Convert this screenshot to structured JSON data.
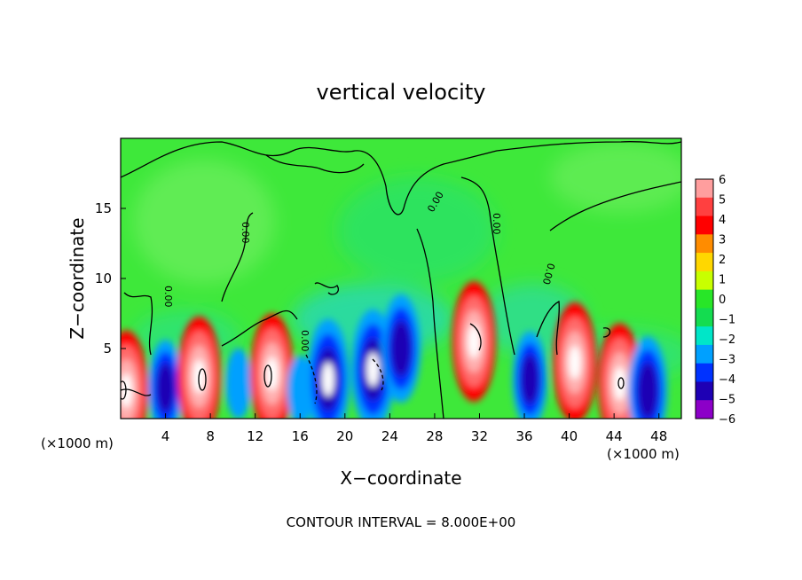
{
  "chart_data": {
    "type": "heatmap",
    "title": "vertical velocity",
    "xlabel": "X−coordinate",
    "ylabel": "Z−coordinate",
    "x_unit_left": "(×1000 m)",
    "x_unit_right": "(×1000 m)",
    "xlim": [
      0,
      50
    ],
    "ylim": [
      0,
      20
    ],
    "x_ticks": [
      4,
      8,
      12,
      16,
      20,
      24,
      28,
      32,
      36,
      40,
      44,
      48
    ],
    "x_tick_labels": [
      "4",
      "8",
      "12",
      "16",
      "20",
      "24",
      "28",
      "32",
      "36",
      "40",
      "44",
      "48"
    ],
    "y_ticks": [
      5,
      10,
      15
    ],
    "y_tick_labels": [
      "5",
      "10",
      "15"
    ],
    "colorbar": {
      "min": -6,
      "max": 6,
      "tick_values": [
        6,
        5,
        4,
        3,
        2,
        1,
        0,
        -1,
        -2,
        -3,
        -4,
        -5,
        -6
      ],
      "tick_labels": [
        "6",
        "5",
        "4",
        "3",
        "2",
        "1",
        "0",
        "−1",
        "−2",
        "−3",
        "−4",
        "−5",
        "−6"
      ],
      "colors": [
        "#ff9e9e",
        "#ff4040",
        "#ff0000",
        "#ff8c00",
        "#ffd700",
        "#c8ff00",
        "#28e628",
        "#14dc50",
        "#00e6c8",
        "#00a0ff",
        "#0032ff",
        "#1e00b4",
        "#8c00c8"
      ]
    },
    "background_value_color": "#3ee83a",
    "contour_labels": [
      "0.00",
      "0.00",
      "0.00",
      "0.00",
      "0.00",
      "0.00"
    ],
    "cells": [
      {
        "x": 0.5,
        "z": 2.0,
        "w": 6
      },
      {
        "x": 4.0,
        "z": 2.2,
        "w": -4
      },
      {
        "x": 7.0,
        "z": 3.0,
        "w": 6
      },
      {
        "x": 10.5,
        "z": 2.5,
        "w": -2
      },
      {
        "x": 13.5,
        "z": 3.2,
        "w": 6
      },
      {
        "x": 16.0,
        "z": 2.0,
        "w": -2
      },
      {
        "x": 18.5,
        "z": 2.8,
        "w": -6
      },
      {
        "x": 22.5,
        "z": 3.5,
        "w": -6
      },
      {
        "x": 25.0,
        "z": 5.0,
        "w": -5
      },
      {
        "x": 31.5,
        "z": 5.5,
        "w": 6
      },
      {
        "x": 36.5,
        "z": 2.8,
        "w": -4
      },
      {
        "x": 40.5,
        "z": 4.0,
        "w": 6
      },
      {
        "x": 44.5,
        "z": 2.5,
        "w": 6
      },
      {
        "x": 47.0,
        "z": 2.0,
        "w": -5
      }
    ],
    "footer": "CONTOUR INTERVAL = 8.000E+00"
  }
}
